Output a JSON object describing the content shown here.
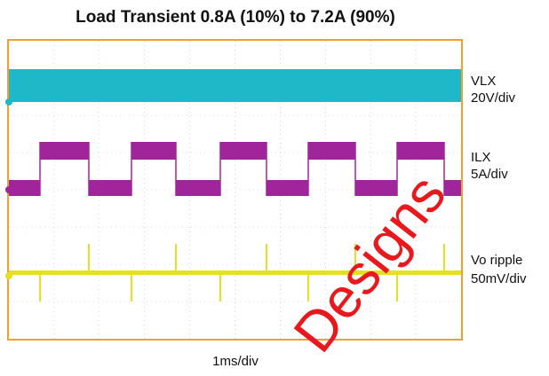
{
  "title": "Load Transient 0.8A (10%) to 7.2A (90%)",
  "channels": [
    {
      "name": "VLX",
      "scale": "20V/div"
    },
    {
      "name": "ILX",
      "scale": "5A/div"
    },
    {
      "name": "Vo ripple",
      "scale": "50mV/div"
    }
  ],
  "time_scale": "1ms/div",
  "watermark": "Designs"
}
